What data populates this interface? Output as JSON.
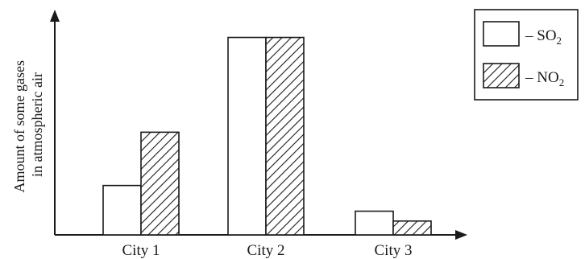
{
  "chart_data": {
    "type": "bar",
    "ylabel": [
      "Amount of some gases",
      "in atmospheric air"
    ],
    "categories": [
      "City 1",
      "City 2",
      "City 3"
    ],
    "series": [
      {
        "name": "SO",
        "subscript": "2",
        "pattern": "none",
        "values": [
          2.5,
          10.0,
          1.2
        ]
      },
      {
        "name": "NO",
        "subscript": "2",
        "pattern": "hatch",
        "values": [
          5.2,
          10.0,
          0.7
        ]
      }
    ],
    "ylim": [
      0,
      11
    ],
    "y_ticks": false,
    "grid": false,
    "legend_position": "top-right",
    "legend_prefix": "– "
  }
}
